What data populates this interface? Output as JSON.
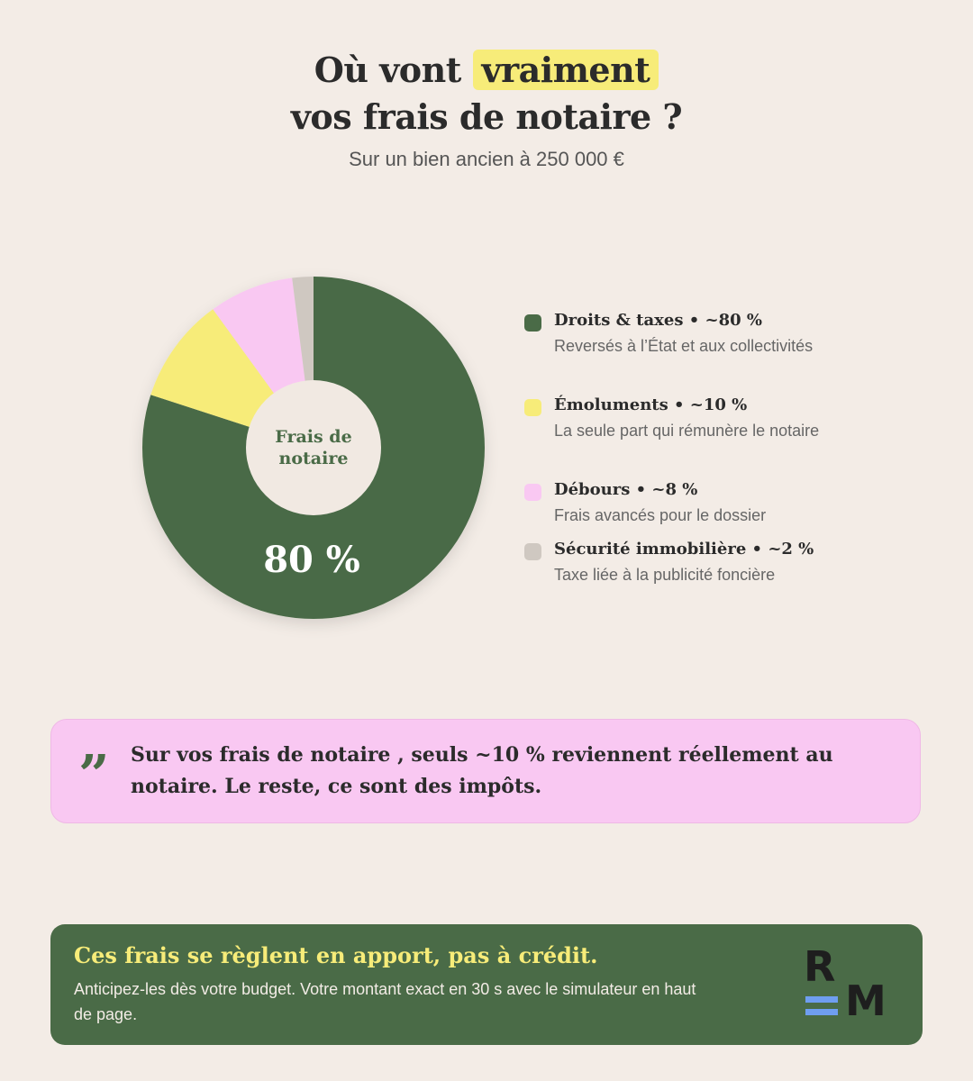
{
  "header": {
    "title_before": "Où vont ",
    "title_highlight": "vraiment",
    "title_after": "vos frais de notaire ?",
    "subtitle": "Sur un bien ancien à 250 000 €"
  },
  "chart_data": {
    "type": "pie",
    "donut": true,
    "center_label_line1": "Frais de",
    "center_label_line2": "notaire",
    "highlight_label": "80 %",
    "slices": [
      {
        "name": "Droits & taxes",
        "value": 80,
        "color": "#4a6b47"
      },
      {
        "name": "Émoluments",
        "value": 10,
        "color": "#f7ec79"
      },
      {
        "name": "Débours",
        "value": 8,
        "color": "#f9c8f2"
      },
      {
        "name": "Sécurité immobilière",
        "value": 2,
        "color": "#cfc8c1"
      }
    ]
  },
  "legend": {
    "items": [
      {
        "title": "Droits & taxes • ~80 %",
        "desc": "Reversés à l’État et aux collectivités",
        "color": "#4a6b47"
      },
      {
        "title": "Émoluments • ~10 %",
        "desc": "La seule part qui rémunère le notaire",
        "color": "#f7ec79"
      },
      {
        "title": "Débours • ~8 %",
        "desc": "Frais avancés pour le dossier",
        "color": "#f9c8f2"
      },
      {
        "title": "Sécurité immobilière • ~2 %",
        "desc": "Taxe liée à la publicité foncière",
        "color": "#cfc8c1"
      }
    ]
  },
  "quote": {
    "icon": "quote-icon",
    "text": "Sur vos frais de notaire , seuls ~10 % reviennent réellement au notaire. Le reste, ce sont des impôts."
  },
  "cta": {
    "title": "Ces frais se règlent en apport, pas à crédit.",
    "text": "Anticipez-les dès votre budget. Votre montant exact en 30 s avec le simulateur en haut de page.",
    "logo_letter_top": "R",
    "logo_letter_bottom": "M"
  },
  "colors": {
    "background": "#f3ece6",
    "green": "#4a6b47",
    "yellow": "#f7ec79",
    "pink": "#f9c8f2",
    "grey": "#cfc8c1",
    "logo_blue": "#6f9ef0"
  }
}
